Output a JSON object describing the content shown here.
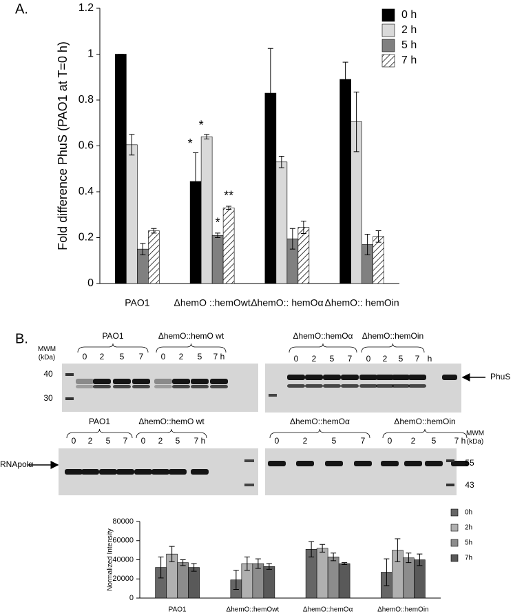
{
  "chart_data": [
    {
      "type": "bar",
      "panel_label": "A.",
      "y_label": "Fold difference PhuS (PAO1 at T=0 h)",
      "categories": [
        "PAO1",
        "ΔhemO ::hemOwt",
        "ΔhemO:: hemOα",
        "ΔhemO:: hemOin"
      ],
      "series": [
        {
          "name": "0 h",
          "color": "#000000",
          "values": [
            1.0,
            0.445,
            0.83,
            0.89
          ],
          "errors": [
            0,
            0.125,
            0.195,
            0.075
          ],
          "significance": [
            null,
            "*",
            null,
            null
          ]
        },
        {
          "name": "2 h",
          "color": "#d9d9d9",
          "values": [
            0.605,
            0.64,
            0.53,
            0.705
          ],
          "errors": [
            0.045,
            0.01,
            0.025,
            0.13
          ],
          "significance": [
            null,
            "*",
            null,
            null
          ]
        },
        {
          "name": "5 h",
          "color": "#808080",
          "values": [
            0.15,
            0.21,
            0.195,
            0.17
          ],
          "errors": [
            0.025,
            0.01,
            0.045,
            0.045
          ],
          "significance": [
            null,
            "*",
            null,
            null
          ]
        },
        {
          "name": "7 h",
          "color": "#ffffff",
          "hatch": true,
          "values": [
            0.23,
            0.33,
            0.245,
            0.205
          ],
          "errors": [
            0.01,
            0.007,
            0.027,
            0.025
          ],
          "significance": [
            null,
            "**",
            null,
            null
          ]
        }
      ],
      "ylim": [
        0,
        1.2
      ],
      "yticks": [
        0,
        0.2,
        0.4,
        0.6,
        0.8,
        1,
        1.2
      ],
      "grid": false,
      "legend": "top-right"
    },
    {
      "type": "bar",
      "y_label": "Normalized Intensity",
      "categories": [
        "PAO1",
        "ΔhemO::hemOwt",
        "ΔhemO::hemOα",
        "ΔhemO::hemOin"
      ],
      "series": [
        {
          "name": "0h",
          "color": "#666666",
          "values": [
            32000,
            19000,
            51000,
            27000
          ],
          "errors": [
            11000,
            10000,
            8000,
            14000
          ]
        },
        {
          "name": "2h",
          "color": "#b0b0b0",
          "values": [
            46000,
            36000,
            52000,
            50000
          ],
          "errors": [
            8000,
            7000,
            4000,
            12000
          ]
        },
        {
          "name": "5h",
          "color": "#8c8c8c",
          "values": [
            37000,
            36000,
            43000,
            42000
          ],
          "errors": [
            3000,
            5000,
            4000,
            5000
          ]
        },
        {
          "name": "7h",
          "color": "#595959",
          "values": [
            32000,
            33000,
            36000,
            40000
          ],
          "errors": [
            4000,
            3000,
            1000,
            6000
          ]
        }
      ],
      "ylim": [
        0,
        80000
      ],
      "yticks": [
        0,
        20000,
        40000,
        60000,
        80000
      ],
      "grid": false,
      "legend": "right"
    }
  ],
  "blots": {
    "panel_label": "B.",
    "top_left": {
      "mwm": "MWM (kDa)",
      "groups": [
        "PAO1",
        "ΔhemO::hemO wt"
      ],
      "lanes": [
        "0",
        "2",
        "5",
        "7",
        "0",
        "2",
        "5",
        "7 h"
      ],
      "markers": [
        40,
        30
      ]
    },
    "top_right": {
      "groups": [
        "ΔhemO::hemOα",
        "ΔhemO::hemOin"
      ],
      "lanes": [
        "0",
        "2",
        "5",
        "7",
        "0",
        "2",
        "5",
        "7",
        "h"
      ],
      "protein": "PhuS"
    },
    "bottom_left": {
      "groups": [
        "PAO1",
        "ΔhemO::hemO wt"
      ],
      "lanes": [
        "0",
        "2",
        "5",
        "7",
        "0",
        "2",
        "5",
        "7 h"
      ],
      "protein": "RNApolα"
    },
    "bottom_right": {
      "groups": [
        "ΔhemO::hemOα",
        "ΔhemO::hemOin"
      ],
      "lanes": [
        "0",
        "2",
        "5",
        "7",
        "0",
        "2",
        "5",
        "7 h"
      ],
      "mwm": "MWM (kDa)",
      "markers": [
        55,
        43
      ]
    }
  }
}
